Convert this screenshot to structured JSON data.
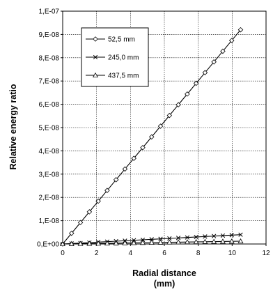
{
  "chart_data": {
    "type": "line",
    "title": "",
    "xlabel": "Radial distance",
    "xlabel_unit": "(mm)",
    "ylabel": "Relative energy ratio",
    "xlim": [
      0,
      12
    ],
    "ylim": [
      0,
      1e-07
    ],
    "x_ticks": [
      "0",
      "2",
      "4",
      "6",
      "8",
      "10",
      "12"
    ],
    "y_ticks": [
      "0,E+00",
      "1,E-08",
      "2,E-08",
      "3,E-08",
      "4,E-08",
      "5,E-08",
      "6,E-08",
      "7,E-08",
      "8,E-08",
      "9,E-08",
      "1,E-07"
    ],
    "grid": true,
    "legend_position": "top-left",
    "series": [
      {
        "name": "52,5 mm",
        "marker": "diamond",
        "x": [
          0,
          0.525,
          1.05,
          1.575,
          2.1,
          2.625,
          3.15,
          3.675,
          4.2,
          4.725,
          5.25,
          5.775,
          6.3,
          6.825,
          7.35,
          7.875,
          8.4,
          8.925,
          9.45,
          9.975,
          10.5
        ],
        "y": [
          0.0,
          4.6e-09,
          9.2e-09,
          1.38e-08,
          1.84e-08,
          2.3e-08,
          2.76e-08,
          3.22e-08,
          3.68e-08,
          4.14e-08,
          4.6e-08,
          5.06e-08,
          5.52e-08,
          5.98e-08,
          6.44e-08,
          6.9e-08,
          7.36e-08,
          7.82e-08,
          8.28e-08,
          8.74e-08,
          9.2e-08
        ]
      },
      {
        "name": "245,0 mm",
        "marker": "x",
        "x": [
          0,
          0.525,
          1.05,
          1.575,
          2.1,
          2.625,
          3.15,
          3.675,
          4.2,
          4.725,
          5.25,
          5.775,
          6.3,
          6.825,
          7.35,
          7.875,
          8.4,
          8.925,
          9.45,
          9.975,
          10.5
        ],
        "y": [
          0.0,
          2e-10,
          4e-10,
          6e-10,
          8e-10,
          1e-09,
          1.2e-09,
          1.4e-09,
          1.6e-09,
          1.8e-09,
          2e-09,
          2.2e-09,
          2.4e-09,
          2.6e-09,
          2.8e-09,
          3e-09,
          3.2e-09,
          3.4e-09,
          3.6e-09,
          3.8e-09,
          4e-09
        ]
      },
      {
        "name": "437,5 mm",
        "marker": "triangle",
        "x": [
          0,
          0.525,
          1.05,
          1.575,
          2.1,
          2.625,
          3.15,
          3.675,
          4.2,
          4.725,
          5.25,
          5.775,
          6.3,
          6.825,
          7.35,
          7.875,
          8.4,
          8.925,
          9.45,
          9.975,
          10.5
        ],
        "y": [
          0.0,
          6e-11,
          1.2e-10,
          1.8e-10,
          2.4e-10,
          3e-10,
          3.6e-10,
          4.2e-10,
          4.8e-10,
          5.4e-10,
          6e-10,
          6.6e-10,
          7.2e-10,
          7.8e-10,
          8.4e-10,
          9e-10,
          9.6e-10,
          1.02e-09,
          1.08e-09,
          1.14e-09,
          1.2e-09
        ]
      }
    ]
  }
}
